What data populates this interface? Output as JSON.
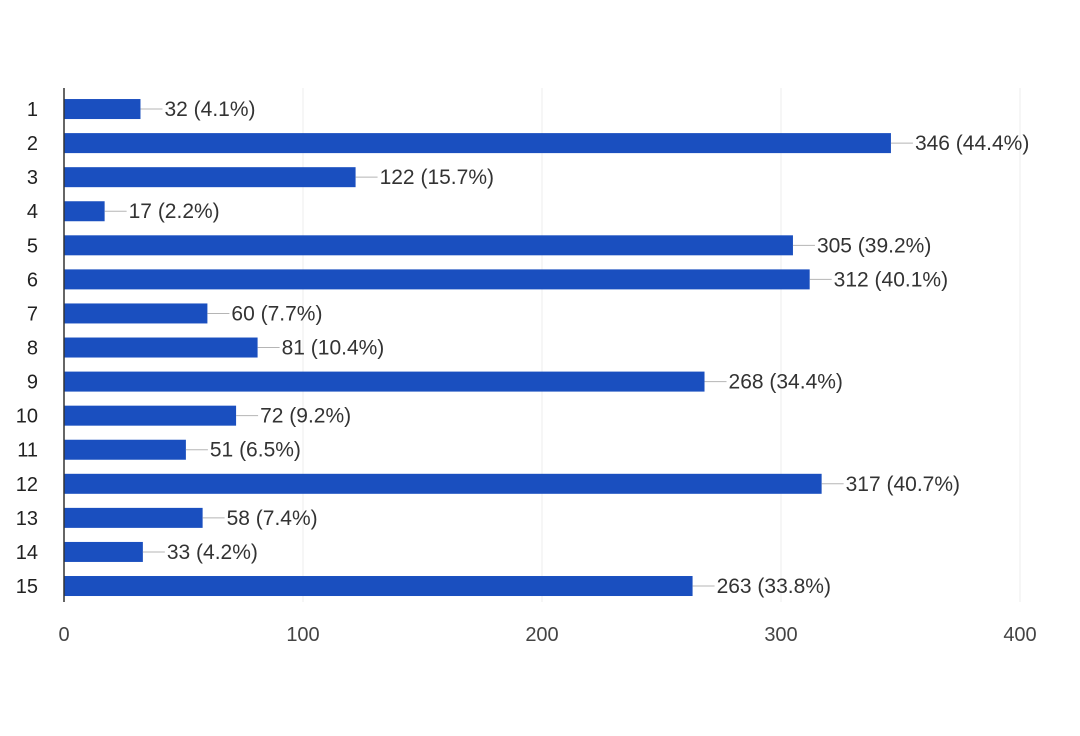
{
  "chart_data": {
    "type": "bar",
    "orientation": "horizontal",
    "title": "",
    "xlabel": "",
    "ylabel": "",
    "categories": [
      "1",
      "2",
      "3",
      "4",
      "5",
      "6",
      "7",
      "8",
      "9",
      "10",
      "11",
      "12",
      "13",
      "14",
      "15"
    ],
    "values": [
      32,
      346,
      122,
      17,
      305,
      312,
      60,
      81,
      268,
      72,
      51,
      317,
      58,
      33,
      263
    ],
    "data_labels": [
      "32 (4.1%)",
      "346 (44.4%)",
      "122 (15.7%)",
      "17 (2.2%)",
      "305 (39.2%)",
      "312 (40.1%)",
      "60 (7.7%)",
      "81 (10.4%)",
      "268 (34.4%)",
      "72 (9.2%)",
      "51 (6.5%)",
      "317 (40.7%)",
      "58 (7.4%)",
      "33 (4.2%)",
      "263 (33.8%)"
    ],
    "xlim": [
      0,
      400
    ],
    "xticks": [
      "0",
      "100",
      "200",
      "300",
      "400"
    ],
    "grid": "vertical",
    "legend": "none",
    "colors": {
      "bar": "#1a4fbf",
      "grid": "#ececec",
      "axis": "#333333",
      "leader": "#b5b5b5"
    }
  }
}
